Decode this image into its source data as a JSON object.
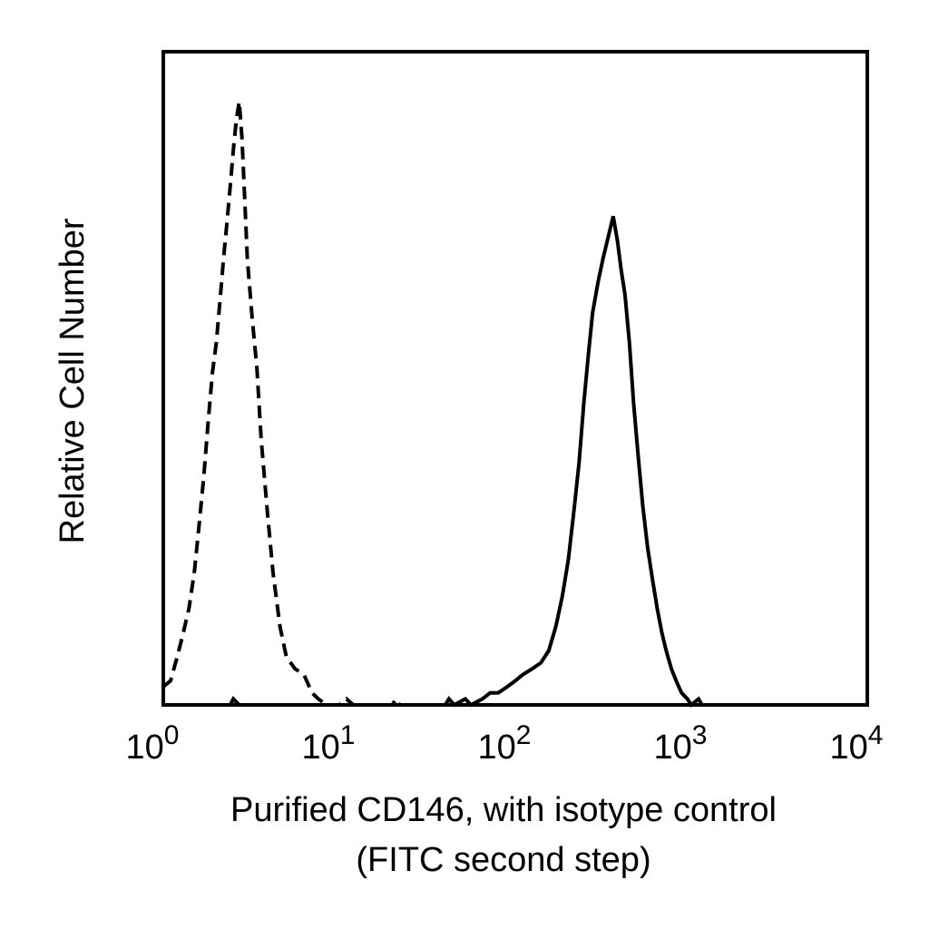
{
  "chart_data": {
    "type": "line",
    "title": "",
    "xlabel_line1": "Purified CD146, with isotype control",
    "xlabel_line2": "(FITC second step)",
    "ylabel": "Relative Cell Number",
    "x_scale": "log",
    "xlim": [
      1,
      10000
    ],
    "ylim": [
      0,
      1
    ],
    "grid": false,
    "legend": "none",
    "x_ticks": [
      {
        "value": 1,
        "base": "10",
        "exp": "0"
      },
      {
        "value": 10,
        "base": "10",
        "exp": "1"
      },
      {
        "value": 100,
        "base": "10",
        "exp": "2"
      },
      {
        "value": 1000,
        "base": "10",
        "exp": "3"
      },
      {
        "value": 10000,
        "base": "10",
        "exp": "4"
      }
    ],
    "series": [
      {
        "style": "dashed",
        "color": "#000000",
        "points": [
          [
            1.0,
            0.03
          ],
          [
            1.1,
            0.04
          ],
          [
            1.2,
            0.08
          ],
          [
            1.3,
            0.12
          ],
          [
            1.4,
            0.16
          ],
          [
            1.5,
            0.22
          ],
          [
            1.6,
            0.3
          ],
          [
            1.7,
            0.38
          ],
          [
            1.8,
            0.47
          ],
          [
            1.9,
            0.55
          ],
          [
            2.0,
            0.6
          ],
          [
            2.1,
            0.67
          ],
          [
            2.2,
            0.74
          ],
          [
            2.3,
            0.8
          ],
          [
            2.4,
            0.86
          ],
          [
            2.5,
            0.92
          ],
          [
            2.6,
            0.97
          ],
          [
            2.7,
            1.0
          ],
          [
            2.8,
            0.94
          ],
          [
            2.9,
            0.84
          ],
          [
            3.0,
            0.74
          ],
          [
            3.2,
            0.64
          ],
          [
            3.4,
            0.56
          ],
          [
            3.6,
            0.44
          ],
          [
            3.9,
            0.32
          ],
          [
            4.2,
            0.22
          ],
          [
            4.6,
            0.13
          ],
          [
            5.0,
            0.08
          ],
          [
            5.6,
            0.06
          ],
          [
            6.3,
            0.05
          ],
          [
            7.0,
            0.02
          ],
          [
            7.6,
            0.01
          ],
          [
            8.5,
            0.0
          ],
          [
            10,
            0.0
          ],
          [
            11,
            0.01
          ],
          [
            12,
            0.0
          ],
          [
            20,
            0.0
          ],
          [
            21,
            0.01
          ],
          [
            22,
            0.0
          ],
          [
            100,
            0.0
          ]
        ]
      },
      {
        "style": "solid",
        "color": "#000000",
        "points": [
          [
            1.0,
            0.0
          ],
          [
            2.4,
            0.0
          ],
          [
            2.5,
            0.01
          ],
          [
            2.7,
            0.0
          ],
          [
            10,
            0.0
          ],
          [
            40,
            0.0
          ],
          [
            42,
            0.01
          ],
          [
            45,
            0.0
          ],
          [
            52,
            0.01
          ],
          [
            56,
            0.0
          ],
          [
            65,
            0.01
          ],
          [
            72,
            0.02
          ],
          [
            80,
            0.02
          ],
          [
            90,
            0.03
          ],
          [
            100,
            0.04
          ],
          [
            110,
            0.05
          ],
          [
            125,
            0.06
          ],
          [
            140,
            0.07
          ],
          [
            155,
            0.09
          ],
          [
            170,
            0.13
          ],
          [
            185,
            0.18
          ],
          [
            200,
            0.24
          ],
          [
            215,
            0.32
          ],
          [
            230,
            0.4
          ],
          [
            245,
            0.5
          ],
          [
            260,
            0.58
          ],
          [
            275,
            0.65
          ],
          [
            295,
            0.7
          ],
          [
            315,
            0.74
          ],
          [
            340,
            0.78
          ],
          [
            360,
            0.81
          ],
          [
            380,
            0.77
          ],
          [
            400,
            0.72
          ],
          [
            420,
            0.68
          ],
          [
            445,
            0.6
          ],
          [
            470,
            0.5
          ],
          [
            500,
            0.41
          ],
          [
            530,
            0.33
          ],
          [
            565,
            0.26
          ],
          [
            600,
            0.21
          ],
          [
            640,
            0.16
          ],
          [
            680,
            0.12
          ],
          [
            720,
            0.09
          ],
          [
            770,
            0.06
          ],
          [
            820,
            0.04
          ],
          [
            880,
            0.02
          ],
          [
            950,
            0.01
          ],
          [
            1000,
            0.0
          ],
          [
            1100,
            0.01
          ],
          [
            1150,
            0.0
          ],
          [
            10000,
            0.0
          ]
        ]
      }
    ]
  }
}
